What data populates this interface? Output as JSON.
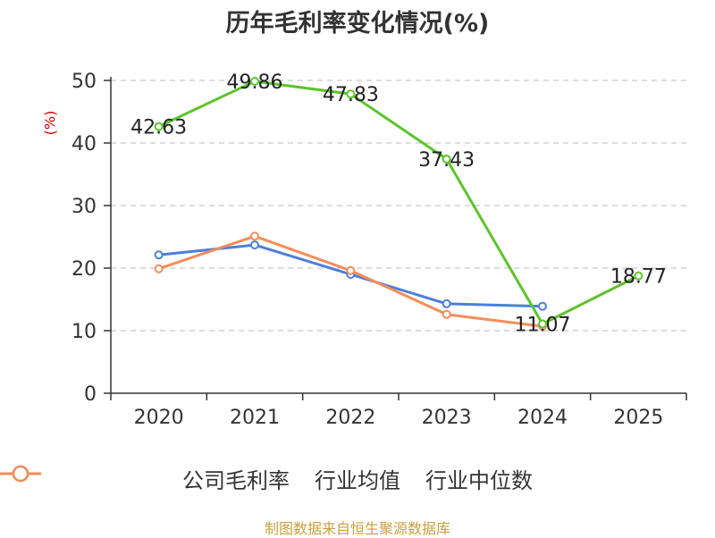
{
  "chart_data": {
    "type": "line",
    "title": "历年毛利率变化情况(%)",
    "ylabel": "(%)",
    "xlabel": "",
    "categories": [
      "2020",
      "2021",
      "2022",
      "2023",
      "2024",
      "2025"
    ],
    "ylim": [
      0,
      50
    ],
    "yticks": [
      0,
      10,
      20,
      30,
      40,
      50
    ],
    "grid": true,
    "legend_position": "bottom",
    "series": [
      {
        "name": "公司毛利率",
        "color": "#5cc42a",
        "values": [
          42.63,
          49.86,
          47.83,
          37.43,
          11.07,
          18.77
        ],
        "labels": [
          "42.63",
          "49.86",
          "47.83",
          "37.43",
          "11.07",
          "18.77"
        ]
      },
      {
        "name": "行业均值",
        "color": "#4c7fdc",
        "values": [
          22.1,
          23.7,
          19.0,
          14.3,
          13.9,
          null
        ]
      },
      {
        "name": "行业中位数",
        "color": "#f58c5a",
        "values": [
          19.9,
          25.1,
          19.6,
          12.6,
          10.7,
          null
        ]
      }
    ]
  },
  "source": "制图数据来自恒生聚源数据库"
}
